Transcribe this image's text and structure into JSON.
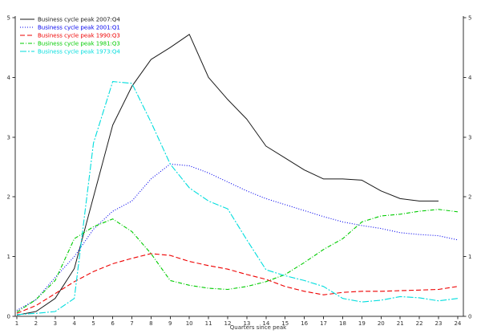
{
  "figure": {
    "background": "#ffffff",
    "axis_color": "#303030",
    "tick_label_color": "#303030"
  },
  "chart_data": {
    "type": "line",
    "title": "",
    "xlabel": "Quarters since peak",
    "ylabel": "",
    "x": [
      1,
      2,
      3,
      4,
      5,
      6,
      7,
      8,
      9,
      10,
      11,
      12,
      13,
      14,
      15,
      16,
      17,
      18,
      19,
      20,
      21,
      22,
      23,
      24
    ],
    "xlim": [
      1,
      24
    ],
    "ylim": [
      0,
      5
    ],
    "yticks": [
      0,
      1,
      2,
      3,
      4,
      5
    ],
    "grid": false,
    "legend_position": "top-left",
    "series": [
      {
        "name": "Business cycle peak 2007:Q4",
        "color": "#1a1a1a",
        "style": "solid",
        "values": [
          0.02,
          0.08,
          0.3,
          0.8,
          2.0,
          3.2,
          3.85,
          4.3,
          4.5,
          4.72,
          4.0,
          3.63,
          3.3,
          2.85,
          2.65,
          2.45,
          2.3,
          2.3,
          2.28,
          2.1,
          1.97,
          1.93,
          1.93,
          null
        ]
      },
      {
        "name": "Business cycle peak 2001:Q1",
        "color": "#0000ee",
        "style": "dotted",
        "values": [
          0.1,
          0.28,
          0.65,
          1.0,
          1.46,
          1.76,
          1.93,
          2.3,
          2.55,
          2.52,
          2.4,
          2.25,
          2.1,
          1.97,
          1.87,
          1.77,
          1.67,
          1.58,
          1.52,
          1.47,
          1.4,
          1.37,
          1.35,
          1.28
        ]
      },
      {
        "name": "Business cycle peak 1990:Q3",
        "color": "#ee0000",
        "style": "dashed",
        "values": [
          0.05,
          0.18,
          0.38,
          0.58,
          0.75,
          0.88,
          0.97,
          1.05,
          1.02,
          0.92,
          0.85,
          0.79,
          0.7,
          0.62,
          0.5,
          0.42,
          0.36,
          0.4,
          0.42,
          0.42,
          0.43,
          0.44,
          0.45,
          0.5
        ]
      },
      {
        "name": "Business cycle peak 1981:Q3",
        "color": "#00cc00",
        "style": "dash-dot",
        "values": [
          0.07,
          0.28,
          0.6,
          1.3,
          1.5,
          1.63,
          1.42,
          1.05,
          0.6,
          0.52,
          0.47,
          0.45,
          0.5,
          0.58,
          0.7,
          0.9,
          1.12,
          1.3,
          1.58,
          1.68,
          1.71,
          1.76,
          1.79,
          1.75
        ]
      },
      {
        "name": "Business cycle peak 1973:Q4",
        "color": "#00dddd",
        "style": "long-dash-dot",
        "values": [
          0.03,
          0.05,
          0.08,
          0.3,
          2.9,
          3.93,
          3.9,
          3.25,
          2.55,
          2.15,
          1.93,
          1.8,
          1.28,
          0.78,
          0.68,
          0.6,
          0.5,
          0.3,
          0.24,
          0.27,
          0.33,
          0.31,
          0.26,
          0.3
        ]
      }
    ]
  }
}
